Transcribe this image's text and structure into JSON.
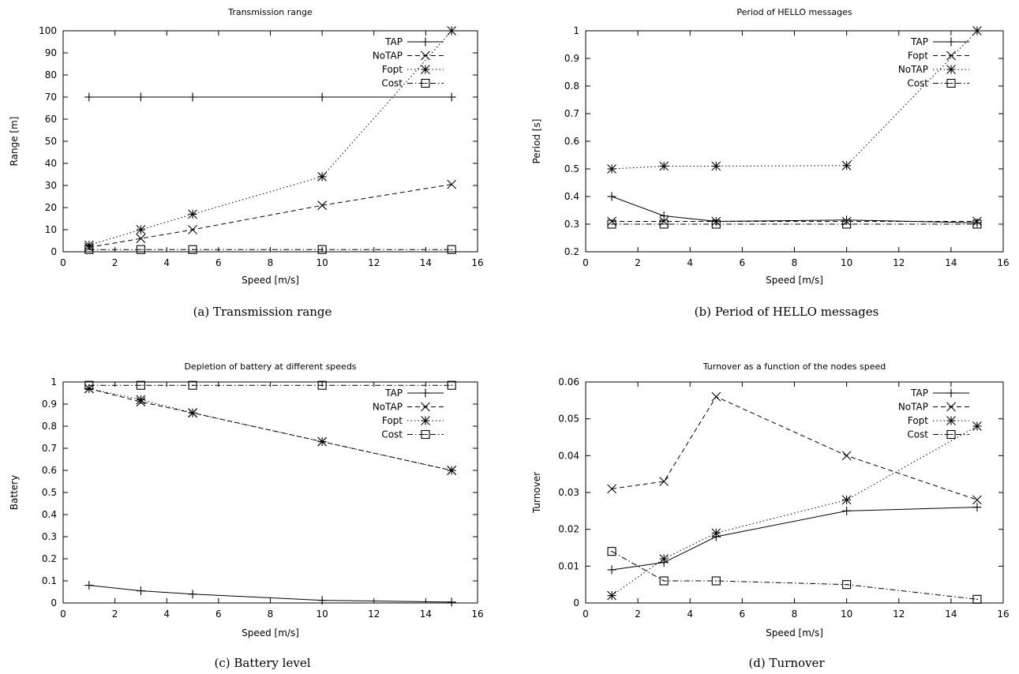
{
  "chart_data": [
    {
      "type": "line",
      "title": "Transmission range",
      "caption": "(a) Transmission range",
      "xlabel": "Speed [m/s]",
      "ylabel": "Range [m]",
      "xlim": [
        0,
        16
      ],
      "ylim": [
        0,
        100
      ],
      "xticks": [
        0,
        2,
        4,
        6,
        8,
        10,
        12,
        14,
        16
      ],
      "yticks": [
        0,
        10,
        20,
        30,
        40,
        50,
        60,
        70,
        80,
        90,
        100
      ],
      "legend_position": "top-right",
      "x": [
        1,
        3,
        5,
        10,
        15
      ],
      "series": [
        {
          "name": "TAP",
          "marker": "plus",
          "dash": "solid",
          "values": [
            70,
            70,
            70,
            70,
            70
          ]
        },
        {
          "name": "NoTAP",
          "marker": "cross",
          "dash": "dashed",
          "values": [
            2,
            6,
            10,
            21,
            30.5
          ]
        },
        {
          "name": "Fopt",
          "marker": "star",
          "dash": "dotted",
          "values": [
            3,
            10,
            17,
            34,
            100
          ]
        },
        {
          "name": "Cost",
          "marker": "square",
          "dash": "dashdot",
          "values": [
            1,
            1,
            1,
            1,
            1
          ]
        }
      ]
    },
    {
      "type": "line",
      "title": "Period of HELLO messages",
      "caption": "(b) Period of HELLO messages",
      "xlabel": "Speed [m/s]",
      "ylabel": "Period [s]",
      "xlim": [
        0,
        16
      ],
      "ylim": [
        0.2,
        1
      ],
      "xticks": [
        0,
        2,
        4,
        6,
        8,
        10,
        12,
        14,
        16
      ],
      "yticks": [
        0.2,
        0.3,
        0.4,
        0.5,
        0.6,
        0.7,
        0.8,
        0.9,
        1
      ],
      "legend_position": "top-right",
      "x": [
        1,
        3,
        5,
        10,
        15
      ],
      "series": [
        {
          "name": "TAP",
          "marker": "plus",
          "dash": "solid",
          "values": [
            0.4,
            0.33,
            0.31,
            0.315,
            0.305
          ]
        },
        {
          "name": "Fopt",
          "marker": "cross",
          "dash": "dashed",
          "values": [
            0.31,
            0.31,
            0.31,
            0.31,
            0.31
          ]
        },
        {
          "name": "NoTAP",
          "marker": "star",
          "dash": "dotted",
          "values": [
            0.5,
            0.51,
            0.51,
            0.512,
            1.0
          ]
        },
        {
          "name": "Cost",
          "marker": "square",
          "dash": "dashdot",
          "values": [
            0.3,
            0.3,
            0.3,
            0.3,
            0.3
          ]
        }
      ]
    },
    {
      "type": "line",
      "title": "Depletion of battery at different speeds",
      "caption": "(c) Battery level",
      "xlabel": "Speed [m/s]",
      "ylabel": "Battery",
      "xlim": [
        0,
        16
      ],
      "ylim": [
        0,
        1
      ],
      "xticks": [
        0,
        2,
        4,
        6,
        8,
        10,
        12,
        14,
        16
      ],
      "yticks": [
        0,
        0.1,
        0.2,
        0.3,
        0.4,
        0.5,
        0.6,
        0.7,
        0.8,
        0.9,
        1
      ],
      "legend_position": "top-right",
      "x": [
        1,
        3,
        5,
        10,
        15
      ],
      "series": [
        {
          "name": "TAP",
          "marker": "plus",
          "dash": "solid",
          "values": [
            0.08,
            0.055,
            0.04,
            0.012,
            0.004
          ]
        },
        {
          "name": "NoTAP",
          "marker": "cross",
          "dash": "dashed",
          "values": [
            0.97,
            0.91,
            0.86,
            0.73,
            0.6
          ]
        },
        {
          "name": "Fopt",
          "marker": "star",
          "dash": "dotted",
          "values": [
            0.97,
            0.92,
            0.86,
            0.73,
            0.6
          ]
        },
        {
          "name": "Cost",
          "marker": "square",
          "dash": "dashdot",
          "values": [
            0.985,
            0.985,
            0.985,
            0.985,
            0.985
          ]
        }
      ]
    },
    {
      "type": "line",
      "title": "Turnover as a function of the nodes speed",
      "caption": "(d) Turnover",
      "xlabel": "Speed [m/s]",
      "ylabel": "Turnover",
      "xlim": [
        0,
        16
      ],
      "ylim": [
        0,
        0.06
      ],
      "xticks": [
        0,
        2,
        4,
        6,
        8,
        10,
        12,
        14,
        16
      ],
      "yticks": [
        0,
        0.01,
        0.02,
        0.03,
        0.04,
        0.05,
        0.06
      ],
      "legend_position": "top-right",
      "x": [
        1,
        3,
        5,
        10,
        15
      ],
      "series": [
        {
          "name": "TAP",
          "marker": "plus",
          "dash": "solid",
          "values": [
            0.009,
            0.011,
            0.018,
            0.025,
            0.026
          ]
        },
        {
          "name": "NoTAP",
          "marker": "cross",
          "dash": "dashed",
          "values": [
            0.031,
            0.033,
            0.056,
            0.04,
            0.028
          ]
        },
        {
          "name": "Fopt",
          "marker": "star",
          "dash": "dotted",
          "values": [
            0.002,
            0.012,
            0.019,
            0.028,
            0.048
          ]
        },
        {
          "name": "Cost",
          "marker": "square",
          "dash": "dashdot",
          "values": [
            0.014,
            0.006,
            0.006,
            0.005,
            0.001
          ]
        }
      ]
    }
  ]
}
